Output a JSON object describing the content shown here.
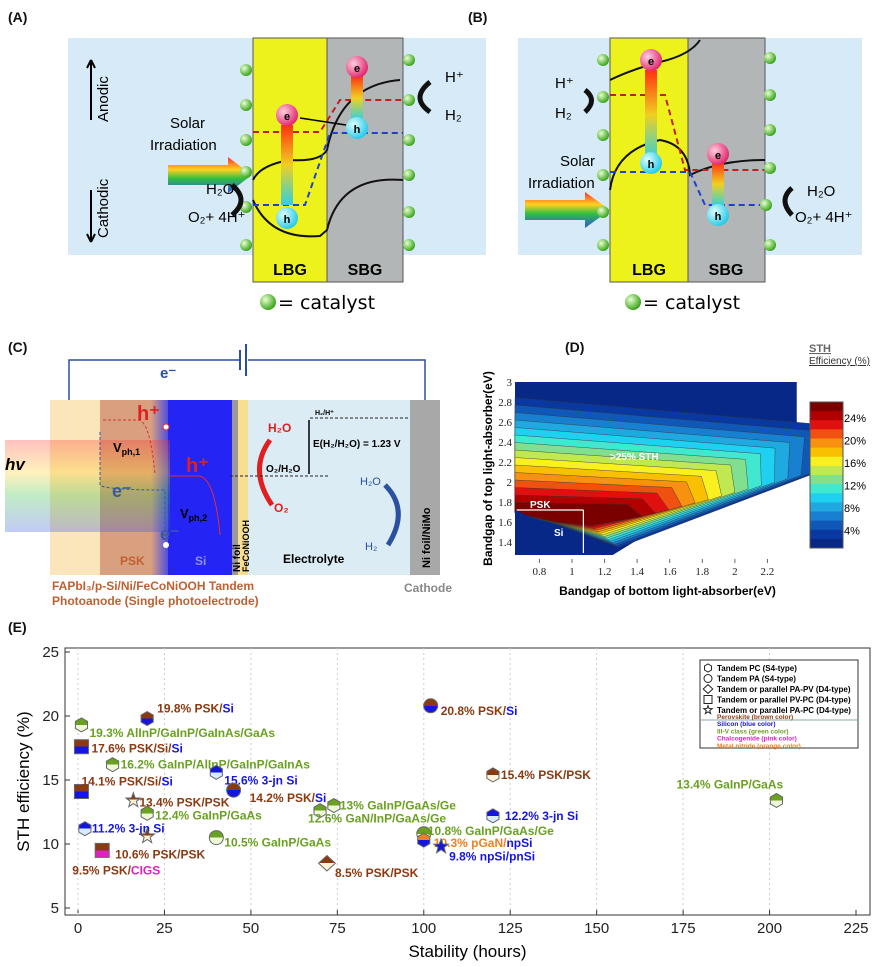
{
  "panels": {
    "A": {
      "label": "(A)",
      "lbg": "LBG",
      "sbg": "SBG",
      "anodic": "Anodic",
      "cathodic": "Cathodic",
      "solar1": "Solar",
      "solar2": "Irradiation",
      "electron": "e",
      "hole": "h",
      "h2o": "H₂O",
      "o2": "O₂+ 4H⁺",
      "hplus": "H⁺",
      "h2": "H₂",
      "catalyst": "= catalyst"
    },
    "B": {
      "label": "(B)",
      "lbg": "LBG",
      "sbg": "SBG",
      "solar1": "Solar",
      "solar2": "Irradiation",
      "electron": "e",
      "hole": "h",
      "h2o": "H₂O",
      "o2": "O₂+ 4H⁺",
      "hplus": "H⁺",
      "h2": "H₂",
      "catalyst": "= catalyst"
    },
    "C": {
      "label": "(C)",
      "wire_electron": "e⁻",
      "hv": "hv",
      "h_plus_1": "h⁺",
      "h_plus_2": "h⁺",
      "vph1": "V",
      "vph1_sub": "ph,1",
      "vph2": "V",
      "vph2_sub": "ph,2",
      "e_minus_1": "e⁻",
      "e_minus_2": "e⁻",
      "psk": "PSK",
      "si": "Si",
      "ni_foil": "Ni foil",
      "feconiooh": "FeCoNiOOH",
      "h2o_red": "H₂O",
      "o2": "O₂",
      "h2_h": "H₂/H⁺",
      "o2_h2o": "O₂/H₂O",
      "potential": "E(H₂/H₂O) = 1.23 V",
      "h2o_blue": "H₂O",
      "h2": "H₂",
      "electrolyte": "Electrolyte",
      "cathode_foil": "Ni foil/NiMo",
      "cathode": "Cathode",
      "caption1": "FAPbI₃/p-Si/Ni/FeCoNiOOH Tandem",
      "caption2": "Photoanode (Single photoelectrode)"
    },
    "D": {
      "label": "(D)",
      "colorbar_title1": "STH",
      "colorbar_title2": "Efficiency (%)",
      "colorbar_ticks": [
        "24%",
        "20%",
        "16%",
        "12%",
        "8%",
        "4%"
      ],
      "colorbar_colors": [
        "#7a0000",
        "#b00000",
        "#e01010",
        "#f05010",
        "#f89010",
        "#f8c000",
        "#f8f020",
        "#c0e850",
        "#80e090",
        "#40e8d0",
        "#20d0f0",
        "#20a8e0",
        "#1880d0",
        "#1058b8",
        "#0838a0",
        "#082888"
      ],
      "annot_psk": "PSK",
      "annot_si": "Si",
      "annot_sth": ">25% STH"
    },
    "E": {
      "label": "(E)"
    }
  },
  "chart_data": [
    {
      "type": "heatmap",
      "xlabel": "Bandgap of bottom light-absorber(eV)",
      "ylabel": "Bandgap of top light-absorber(eV)",
      "xticks": [
        "0.8",
        "1",
        "1.2",
        "1.4",
        "1.6",
        "1.8",
        "2",
        "2.2"
      ],
      "xtick_values": [
        0.8,
        1,
        1.2,
        1.4,
        1.6,
        1.8,
        2,
        2.2
      ],
      "yticks": [
        "3",
        "2.8",
        "2.6",
        "2.4",
        "2.2",
        "2",
        "1.8",
        "1.6",
        "1.4"
      ],
      "ytick_values": [
        3,
        2.8,
        2.6,
        2.4,
        2.2,
        2,
        1.8,
        1.6,
        1.4
      ],
      "xlim": [
        0.65,
        2.4
      ],
      "ylim": [
        1.27,
        3
      ],
      "peak": {
        "x": 0.95,
        "y": 1.66,
        "value_percent": 26
      },
      "colorbar_label": "STH Efficiency (%)"
    },
    {
      "type": "scatter",
      "xlabel": "Stability (hours)",
      "ylabel": "STH efficiency (%)",
      "xlim": [
        -5,
        225
      ],
      "ylim": [
        5,
        25
      ],
      "xticks": [
        0,
        25,
        50,
        75,
        100,
        125,
        150,
        175,
        200,
        225
      ],
      "yticks": [
        5,
        10,
        15,
        20,
        25
      ],
      "grid": "vertical dotted",
      "legend_placement": "top-right",
      "colors": {
        "psk": "#8b3a10",
        "si": "#1515e0",
        "iiiv": "#6aa121",
        "chalco": "#e020c0",
        "nitride": "#f08020",
        "white": "#fff3d8",
        "lightgreen": "#eef8d8",
        "lightblue": "#d8ecff"
      },
      "legend": {
        "shapes": [
          {
            "shape": "hexagon",
            "label": "Tandem PC (S4-type)"
          },
          {
            "shape": "circle",
            "label": "Tandem PA (S4-type)"
          },
          {
            "shape": "diamond",
            "label": "Tandem or parallel PA-PV (D4-type)"
          },
          {
            "shape": "square",
            "label": "Tandem or parallel PV-PC (D4-type)"
          },
          {
            "shape": "star",
            "label": "Tandem or parallel PA-PC (D4-type)"
          }
        ],
        "colors": [
          {
            "label": "Perovskite (brown color)",
            "color": "psk"
          },
          {
            "label": "Silicon (blue color)",
            "color": "si"
          },
          {
            "label": "III-V class (green color)",
            "color": "iiiv"
          },
          {
            "label": "Chalcogenide (pink color)",
            "color": "chalco"
          },
          {
            "label": "Metal nitride (orange color)",
            "color": "nitride"
          }
        ]
      },
      "points": [
        {
          "x": 20,
          "y": 19.8,
          "shape": "hexagon",
          "top": "psk",
          "bottom": "si",
          "label": [
            {
              "t": "19.8% PSK/",
              "c": "psk"
            },
            {
              "t": "Si",
              "c": "si"
            }
          ]
        },
        {
          "x": 1,
          "y": 19.3,
          "shape": "hexagon",
          "top": "iiiv",
          "bottom": "lightgreen",
          "label": [
            {
              "t": "19.3% AlInP/GaInP/GaInAs/GaAs",
              "c": "iiiv"
            }
          ]
        },
        {
          "x": 1,
          "y": 17.6,
          "shape": "square",
          "top": "psk",
          "bottom": "si",
          "label": [
            {
              "t": "17.6% PSK/Si/",
              "c": "psk"
            },
            {
              "t": "Si",
              "c": "si"
            }
          ]
        },
        {
          "x": 10,
          "y": 16.2,
          "shape": "hexagon",
          "top": "iiiv",
          "bottom": "lightgreen",
          "label": [
            {
              "t": "16.2% GaInP/AlInP/GaInP/GaInAs",
              "c": "iiiv"
            }
          ]
        },
        {
          "x": 40,
          "y": 15.6,
          "shape": "hexagon",
          "top": "si",
          "bottom": "lightblue",
          "label": [
            {
              "t": "15.6% 3-jn Si",
              "c": "si"
            }
          ]
        },
        {
          "x": 1,
          "y": 14.1,
          "shape": "square",
          "top": "psk",
          "bottom": "si",
          "label": [
            {
              "t": "14.1% PSK/Si/",
              "c": "psk"
            },
            {
              "t": "Si",
              "c": "si"
            }
          ]
        },
        {
          "x": 45,
          "y": 14.2,
          "shape": "circle",
          "top": "psk",
          "bottom": "si",
          "label": [
            {
              "t": "14.2% PSK/",
              "c": "psk"
            },
            {
              "t": "Si",
              "c": "si"
            }
          ]
        },
        {
          "x": 16,
          "y": 13.4,
          "shape": "star",
          "top": "psk",
          "bottom": "white",
          "label": [
            {
              "t": "13.4% PSK/PSK",
              "c": "psk"
            }
          ]
        },
        {
          "x": 20,
          "y": 12.4,
          "shape": "hexagon",
          "top": "iiiv",
          "bottom": "lightgreen",
          "label": [
            {
              "t": "12.4% GaInP/GaAs",
              "c": "iiiv"
            }
          ]
        },
        {
          "x": 2,
          "y": 11.2,
          "shape": "hexagon",
          "top": "si",
          "bottom": "lightblue",
          "label": [
            {
              "t": "11.2% 3-jn Si",
              "c": "si"
            }
          ]
        },
        {
          "x": 20,
          "y": 10.6,
          "shape": "star",
          "top": "psk",
          "bottom": "white",
          "label": [
            {
              "t": "10.6% PSK/PSK",
              "c": "psk"
            }
          ]
        },
        {
          "x": 40,
          "y": 10.5,
          "shape": "circle",
          "top": "iiiv",
          "bottom": "lightgreen",
          "label": [
            {
              "t": "10.5% GaInP/GaAs",
              "c": "iiiv"
            }
          ]
        },
        {
          "x": 7,
          "y": 9.5,
          "shape": "square",
          "top": "psk",
          "bottom": "chalco",
          "label": [
            {
              "t": "9.5% PSK/",
              "c": "psk"
            },
            {
              "t": "CIGS",
              "c": "chalco"
            }
          ]
        },
        {
          "x": 72,
          "y": 8.5,
          "shape": "diamond",
          "top": "psk",
          "bottom": "white",
          "label": [
            {
              "t": "8.5% PSK/PSK",
              "c": "psk"
            }
          ]
        },
        {
          "x": 74,
          "y": 13.0,
          "shape": "hexagon",
          "top": "iiiv",
          "bottom": "lightgreen",
          "label": [
            {
              "t": "13% GaInP/GaAs/Ge",
              "c": "iiiv"
            }
          ]
        },
        {
          "x": 70,
          "y": 12.6,
          "shape": "hexagon",
          "top": "iiiv",
          "bottom": "lightgreen",
          "label": [
            {
              "t": "12.6% GaN/InP/GaAs/Ge",
              "c": "iiiv"
            }
          ]
        },
        {
          "x": 102,
          "y": 20.8,
          "shape": "circle",
          "top": "psk",
          "bottom": "si",
          "label": [
            {
              "t": "20.8% PSK/",
              "c": "psk"
            },
            {
              "t": "Si",
              "c": "si"
            }
          ]
        },
        {
          "x": 120,
          "y": 15.4,
          "shape": "hexagon",
          "top": "psk",
          "bottom": "white",
          "label": [
            {
              "t": "15.4% PSK/PSK",
              "c": "psk"
            }
          ]
        },
        {
          "x": 120,
          "y": 12.2,
          "shape": "hexagon",
          "top": "si",
          "bottom": "lightblue",
          "label": [
            {
              "t": "12.2% 3-jn Si",
              "c": "si"
            }
          ]
        },
        {
          "x": 100,
          "y": 10.8,
          "shape": "circle",
          "top": "iiiv",
          "bottom": "lightgreen",
          "label": [
            {
              "t": "10.8% GaInP/GaAs/Ge",
              "c": "iiiv"
            }
          ]
        },
        {
          "x": 100,
          "y": 10.3,
          "shape": "hexagon",
          "top": "nitride",
          "bottom": "si",
          "label": [
            {
              "t": "10.3% pGaN/",
              "c": "nitride"
            },
            {
              "t": "npSi",
              "c": "si"
            }
          ]
        },
        {
          "x": 105,
          "y": 9.8,
          "shape": "star",
          "top": "si",
          "bottom": "si",
          "label": [
            {
              "t": "9.8% npSi/pnSi",
              "c": "si"
            }
          ]
        },
        {
          "x": 202,
          "y": 13.4,
          "shape": "hexagon",
          "top": "iiiv",
          "bottom": "lightgreen",
          "label": [
            {
              "t": "13.4% GaInP/GaAs",
              "c": "iiiv"
            }
          ]
        }
      ]
    }
  ]
}
